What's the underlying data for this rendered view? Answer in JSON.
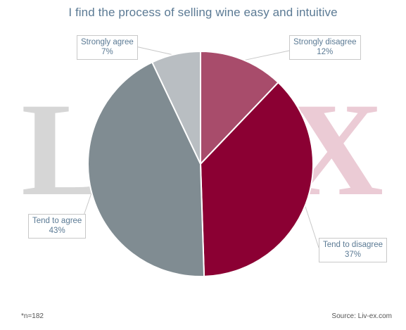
{
  "chart_data": {
    "type": "pie",
    "title": "I find the process of selling wine easy and intuitive",
    "slices": [
      {
        "label": "Strongly disagree",
        "value": 12,
        "value_label": "12%",
        "color": "#a84c6b"
      },
      {
        "label": "Tend to disagree",
        "value": 37,
        "value_label": "37%",
        "color": "#8b0033"
      },
      {
        "label": "Tend to agree",
        "value": 43,
        "value_label": "43%",
        "color": "#808c92"
      },
      {
        "label": "Strongly agree",
        "value": 7,
        "value_label": "7%",
        "color": "#b9bec2"
      }
    ],
    "start_angle": "12 o'clock",
    "direction": "clockwise",
    "legend": "none",
    "label_style": "boxed callouts with leader lines"
  },
  "watermark": {
    "left_text": "LI",
    "right_text": "X"
  },
  "footnotes": {
    "sample": "*n=182",
    "source": "Source: Liv-ex.com"
  }
}
